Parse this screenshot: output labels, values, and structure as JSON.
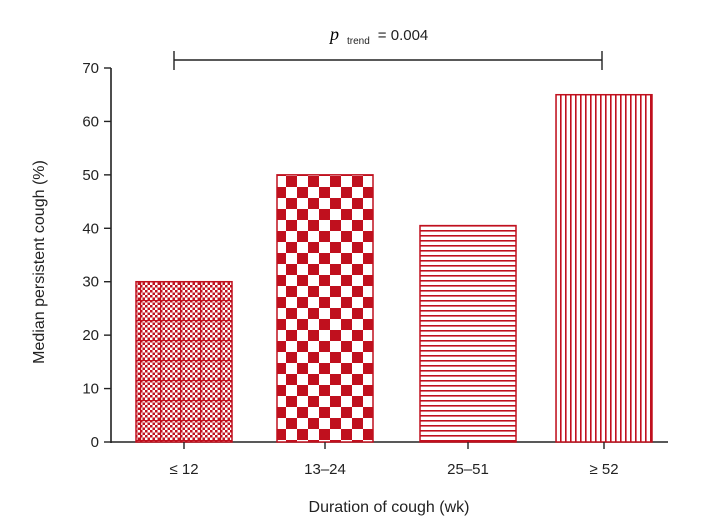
{
  "chart_data": {
    "type": "bar",
    "title": "",
    "categories": [
      "≤ 12",
      "13–24",
      "25–51",
      "≥ 52"
    ],
    "values": [
      30,
      50,
      40.5,
      65
    ],
    "xlabel": "Duration of cough (wk)",
    "ylabel": "Median persistent cough (%)",
    "ylim": [
      0,
      70
    ],
    "yticks": [
      0,
      10,
      20,
      30,
      40,
      50,
      60,
      70
    ],
    "grid": false,
    "legend": "none",
    "bar_color": "#c0101e",
    "bar_patterns": [
      "fine-crosshatch",
      "checkerboard",
      "horizontal-lines",
      "vertical-lines"
    ],
    "annotation": {
      "p_symbol": "p",
      "subscript": "trend",
      "text": "= 0.004",
      "spans_from_category": 0,
      "spans_to_category": 3
    }
  }
}
